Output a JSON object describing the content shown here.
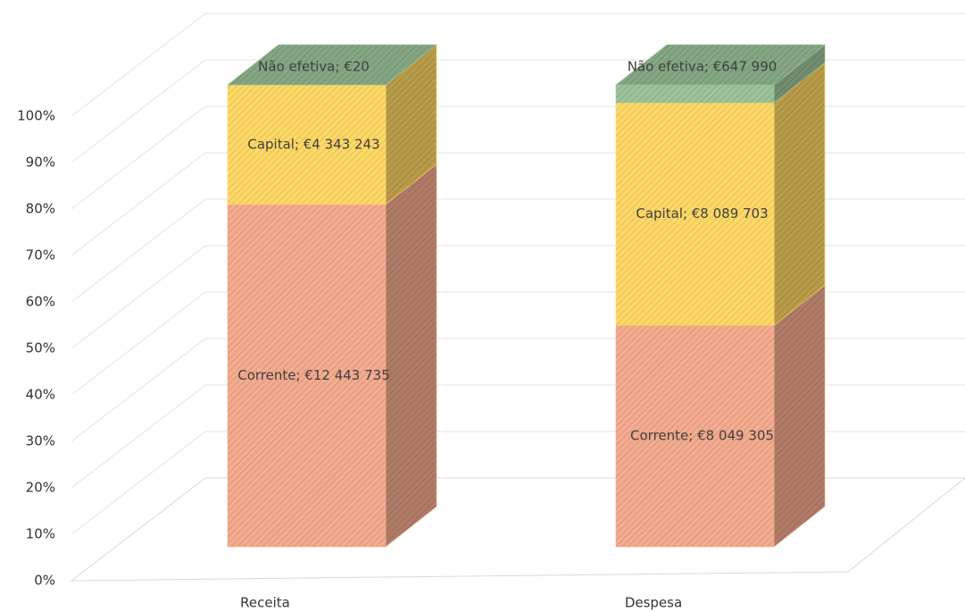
{
  "chart_data": {
    "type": "bar",
    "stacking": "percent",
    "categories": [
      "Receita",
      "Despesa"
    ],
    "series": [
      {
        "name": "Corrente",
        "color": "#f4ab8e",
        "values": [
          12443735,
          8049305
        ],
        "value_labels": [
          "Corrente;  €12 443 735",
          "Corrente;  €8 049 305"
        ]
      },
      {
        "name": "Capital",
        "color": "#ffd966",
        "values": [
          4343243,
          8089703
        ],
        "value_labels": [
          "Capital;  €4 343 243",
          "Capital;  €8 089 703"
        ]
      },
      {
        "name": "Não efetiva",
        "color": "#9dc39a",
        "values": [
          20,
          647990
        ],
        "value_labels": [
          "Não efetiva;  €20",
          "Não efetiva;  €647 990"
        ]
      }
    ],
    "ylim": [
      0,
      100
    ],
    "yticks": [
      {
        "value": 0,
        "label": "0%"
      },
      {
        "value": 10,
        "label": "10%"
      },
      {
        "value": 20,
        "label": "20%"
      },
      {
        "value": 30,
        "label": "30%"
      },
      {
        "value": 40,
        "label": "40%"
      },
      {
        "value": 50,
        "label": "50%"
      },
      {
        "value": 60,
        "label": "60%"
      },
      {
        "value": 70,
        "label": "70%"
      },
      {
        "value": 80,
        "label": "80%"
      },
      {
        "value": 90,
        "label": "90%"
      },
      {
        "value": 100,
        "label": "100%"
      }
    ],
    "grid": true
  }
}
